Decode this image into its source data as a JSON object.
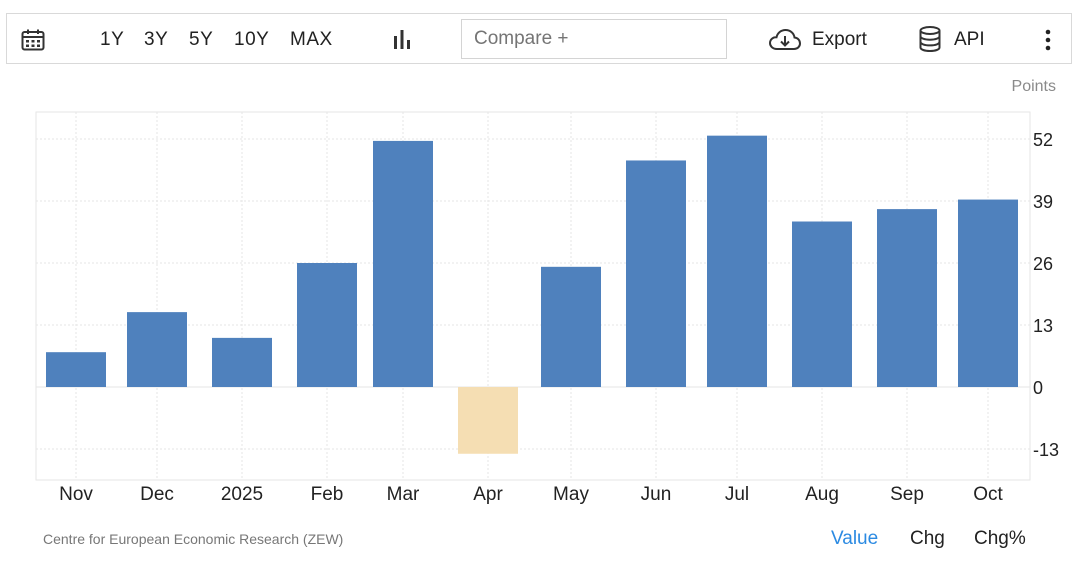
{
  "toolbar": {
    "ranges": [
      "1Y",
      "3Y",
      "5Y",
      "10Y",
      "MAX"
    ],
    "compare_placeholder": "Compare +",
    "export_label": "Export",
    "api_label": "API",
    "icons": [
      "calendar-icon",
      "bar-chart-icon",
      "cloud-download-icon",
      "database-icon",
      "kebab-menu-icon"
    ]
  },
  "units_label": "Points",
  "source": "Centre for European Economic Research (ZEW)",
  "mode_tabs": [
    {
      "label": "Value",
      "active": true
    },
    {
      "label": "Chg",
      "active": false
    },
    {
      "label": "Chg%",
      "active": false
    }
  ],
  "colors": {
    "positive_bar": "#4f81bd",
    "negative_bar": "#f5deb3",
    "grid": "#e6e6e6",
    "axis_text": "#222222",
    "active_tab": "#2b8ae2"
  },
  "chart_data": {
    "type": "bar",
    "categories": [
      "Nov",
      "Dec",
      "2025",
      "Feb",
      "Mar",
      "Apr",
      "May",
      "Jun",
      "Jul",
      "Aug",
      "Sep",
      "Oct"
    ],
    "values": [
      7.3,
      15.7,
      10.3,
      26.0,
      51.6,
      -14.0,
      25.2,
      47.5,
      52.7,
      34.7,
      37.3,
      39.3
    ],
    "yticks": [
      52,
      39,
      26,
      13,
      0,
      -13
    ],
    "ylim": [
      -20,
      58
    ],
    "ylabel": "Points",
    "grid": true,
    "y_axis_side": "right"
  }
}
